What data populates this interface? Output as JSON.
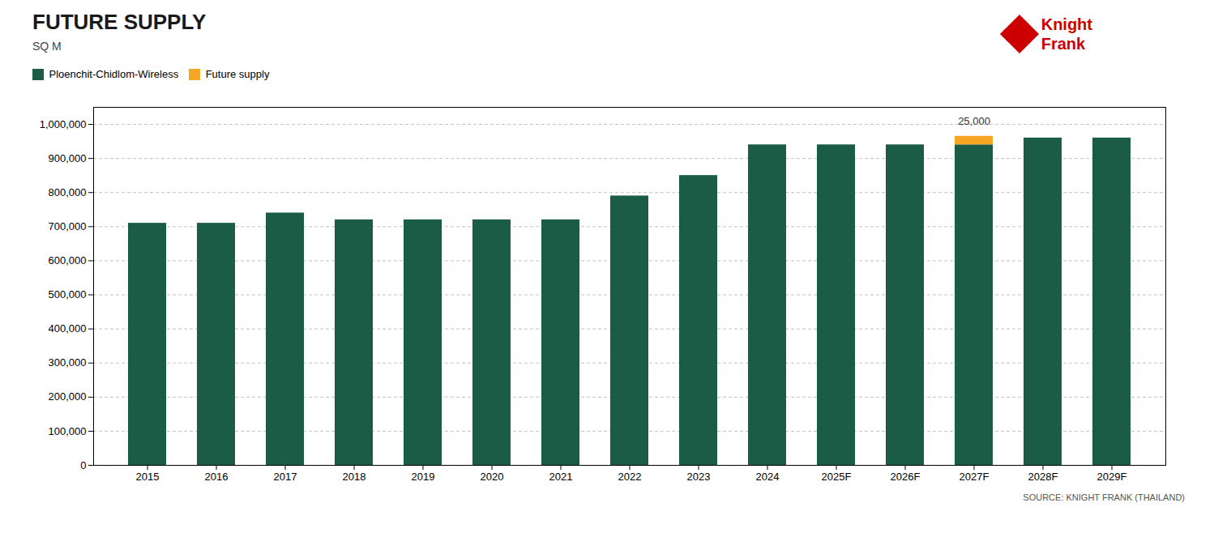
{
  "chart_data": {
    "type": "bar",
    "stacked": true,
    "title": "FUTURE SUPPLY",
    "subtitle": "SQ M",
    "source": "SOURCE: KNIGHT FRANK (THAILAND)",
    "logo_text": "Knight\nFrank",
    "categories": [
      "2015",
      "2016",
      "2017",
      "2018",
      "2019",
      "2020",
      "2021",
      "2022",
      "2023",
      "2024",
      "2025F",
      "2026F",
      "2027F",
      "2028F",
      "2029F"
    ],
    "series": [
      {
        "name": "Ploenchit-Chidlom-Wireless",
        "color": "#1a5c45",
        "values": [
          710000,
          710000,
          740000,
          720000,
          720000,
          720000,
          720000,
          790000,
          850000,
          940000,
          940000,
          940000,
          940000,
          960000,
          960000
        ]
      },
      {
        "name": "Future supply",
        "color": "#f5a623",
        "values": [
          0,
          0,
          0,
          0,
          0,
          0,
          0,
          0,
          0,
          0,
          0,
          0,
          25000,
          0,
          0
        ]
      }
    ],
    "annotations": [
      {
        "text": "25,000",
        "x": "2027F"
      }
    ],
    "ylim": [
      0,
      1050000
    ],
    "yticks": [
      0,
      {
        "value": 100000,
        "label": "100,000"
      },
      {
        "value": 200000,
        "label": "200,000"
      },
      {
        "value": 300000,
        "label": "300,000"
      },
      {
        "value": 400000,
        "label": "400,000"
      },
      {
        "value": 500000,
        "label": "500,000"
      },
      {
        "value": 600000,
        "label": "600,000"
      },
      {
        "value": 700000,
        "label": "700,000"
      },
      {
        "value": 800000,
        "label": "800,000"
      },
      {
        "value": 900000,
        "label": "900,000"
      },
      {
        "value": 1000000,
        "label": "1,000,000"
      }
    ],
    "grid": true,
    "legend": "upper left"
  }
}
